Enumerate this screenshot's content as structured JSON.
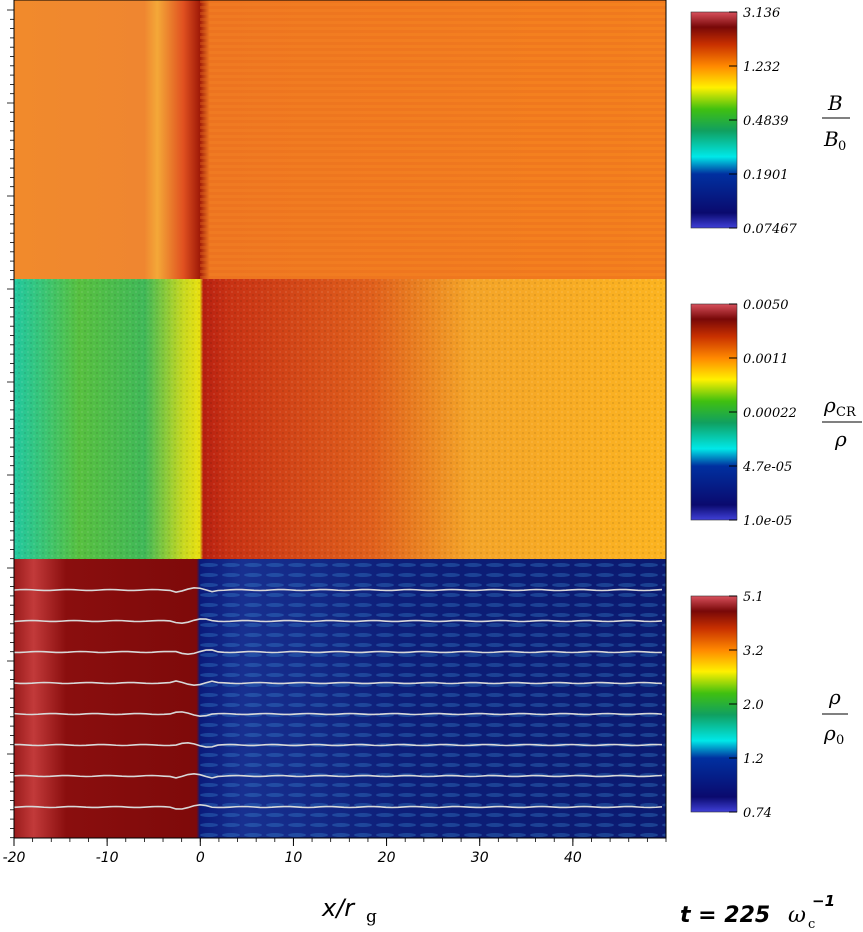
{
  "chart_data": {
    "type": "heatmap",
    "x_axis": {
      "range": [
        -20,
        50
      ],
      "ticks": [
        "-20",
        "-10",
        "0",
        "10",
        "20",
        "30",
        "40"
      ],
      "tick_values": [
        -20,
        -10,
        0,
        10,
        20,
        30,
        40
      ]
    },
    "x_label_main": "x/r",
    "x_label_sub": "g",
    "time": {
      "prefix": "t = 225",
      "omega": "ω",
      "sub": "c",
      "sup": "−1"
    },
    "panels": [
      {
        "quantity": "B/B0",
        "label_num": "B",
        "label_den_main": "B",
        "label_den_sub": "0",
        "colorbar_ticks": [
          "3.136",
          "1.232",
          "0.4839",
          "0.1901",
          "0.07467"
        ]
      },
      {
        "quantity": "rho_CR/rho",
        "label_num_main": "ρ",
        "label_num_sub": "CR",
        "label_den": "ρ",
        "colorbar_ticks": [
          "0.0050",
          "0.0011",
          "0.00022",
          "4.7e-05",
          "1.0e-05"
        ]
      },
      {
        "quantity": "rho/rho0",
        "label_num": "ρ",
        "label_den_main": "ρ",
        "label_den_sub": "0",
        "colorbar_ticks": [
          "5.1",
          "3.2",
          "2.0",
          "1.2",
          "0.74"
        ]
      }
    ],
    "colormap": [
      "#3a3ad6",
      "#0a0a70",
      "#00e0e0",
      "#10a010",
      "#ffee00",
      "#ff7700",
      "#7a0000",
      "#d84c5c"
    ],
    "field_lines_count": 8,
    "grid": false,
    "legend": "right"
  }
}
